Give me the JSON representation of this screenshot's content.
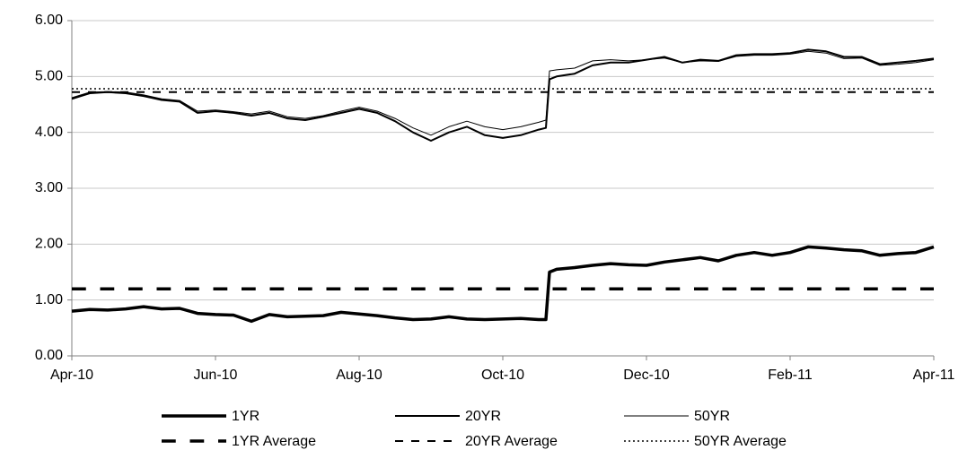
{
  "chart_data": {
    "type": "line",
    "x": [
      0,
      0.25,
      0.5,
      0.75,
      1,
      1.25,
      1.5,
      1.75,
      2,
      2.25,
      2.5,
      2.75,
      3,
      3.25,
      3.5,
      3.75,
      4,
      4.25,
      4.5,
      4.75,
      5,
      5.25,
      5.5,
      5.75,
      6,
      6.25,
      6.5,
      6.6,
      6.65,
      6.75,
      7,
      7.25,
      7.5,
      7.75,
      8,
      8.25,
      8.5,
      8.75,
      9,
      9.25,
      9.5,
      9.75,
      10,
      10.25,
      10.5,
      10.75,
      11,
      11.25,
      11.5,
      11.75,
      12
    ],
    "series": [
      {
        "name": "1YR",
        "color": "#000000",
        "line_width": 3.5,
        "line_style": "solid",
        "values": [
          0.8,
          0.83,
          0.82,
          0.84,
          0.88,
          0.84,
          0.85,
          0.76,
          0.74,
          0.73,
          0.62,
          0.74,
          0.7,
          0.71,
          0.72,
          0.78,
          0.75,
          0.72,
          0.68,
          0.65,
          0.66,
          0.7,
          0.66,
          0.65,
          0.66,
          0.67,
          0.65,
          0.65,
          1.5,
          1.55,
          1.58,
          1.62,
          1.65,
          1.63,
          1.62,
          1.68,
          1.72,
          1.76,
          1.7,
          1.8,
          1.85,
          1.8,
          1.85,
          1.95,
          1.93,
          1.9,
          1.88,
          1.8,
          1.83,
          1.85,
          1.95
        ]
      },
      {
        "name": "20YR",
        "color": "#000000",
        "line_width": 2,
        "line_style": "solid",
        "values": [
          4.6,
          4.7,
          4.72,
          4.7,
          4.65,
          4.58,
          4.55,
          4.35,
          4.38,
          4.35,
          4.3,
          4.35,
          4.25,
          4.22,
          4.28,
          4.35,
          4.42,
          4.35,
          4.2,
          4.0,
          3.85,
          4.0,
          4.1,
          3.95,
          3.9,
          3.95,
          4.05,
          4.08,
          4.95,
          5.0,
          5.05,
          5.2,
          5.25,
          5.25,
          5.3,
          5.35,
          5.25,
          5.3,
          5.28,
          5.38,
          5.4,
          5.4,
          5.42,
          5.48,
          5.45,
          5.35,
          5.35,
          5.22,
          5.25,
          5.28,
          5.32
        ]
      },
      {
        "name": "50YR",
        "color": "#000000",
        "line_width": 1,
        "line_style": "solid",
        "values": [
          4.62,
          4.72,
          4.73,
          4.72,
          4.67,
          4.6,
          4.57,
          4.38,
          4.4,
          4.37,
          4.33,
          4.38,
          4.28,
          4.25,
          4.3,
          4.38,
          4.45,
          4.38,
          4.25,
          4.08,
          3.95,
          4.1,
          4.2,
          4.1,
          4.05,
          4.1,
          4.18,
          4.22,
          5.1,
          5.12,
          5.15,
          5.28,
          5.3,
          5.28,
          5.3,
          5.33,
          5.25,
          5.28,
          5.27,
          5.36,
          5.38,
          5.38,
          5.4,
          5.45,
          5.42,
          5.32,
          5.33,
          5.2,
          5.22,
          5.25,
          5.3
        ]
      },
      {
        "name": "1YR Average",
        "color": "#000000",
        "line_width": 3.5,
        "line_style": "dashed",
        "x": [
          0,
          12
        ],
        "values": [
          1.2,
          1.2
        ]
      },
      {
        "name": "20YR Average",
        "color": "#000000",
        "line_width": 2,
        "line_style": "dashed",
        "x": [
          0,
          12
        ],
        "values": [
          4.72,
          4.72
        ]
      },
      {
        "name": "50YR Average",
        "color": "#000000",
        "line_width": 1.5,
        "line_style": "dotted",
        "x": [
          0,
          12
        ],
        "values": [
          4.78,
          4.78
        ]
      }
    ],
    "xlim": [
      0,
      12
    ],
    "xticks": [
      {
        "value": 0,
        "label": "Apr-10"
      },
      {
        "value": 2,
        "label": "Jun-10"
      },
      {
        "value": 4,
        "label": "Aug-10"
      },
      {
        "value": 6,
        "label": "Oct-10"
      },
      {
        "value": 8,
        "label": "Dec-10"
      },
      {
        "value": 10,
        "label": "Feb-11"
      },
      {
        "value": 12,
        "label": "Apr-11"
      }
    ],
    "ylim": [
      0,
      6
    ],
    "yticks": [
      {
        "value": 0,
        "label": "0.00"
      },
      {
        "value": 1,
        "label": "1.00"
      },
      {
        "value": 2,
        "label": "2.00"
      },
      {
        "value": 3,
        "label": "3.00"
      },
      {
        "value": 4,
        "label": "4.00"
      },
      {
        "value": 5,
        "label": "5.00"
      },
      {
        "value": 6,
        "label": "6.00"
      }
    ],
    "grid": true,
    "legend": "bottom"
  }
}
